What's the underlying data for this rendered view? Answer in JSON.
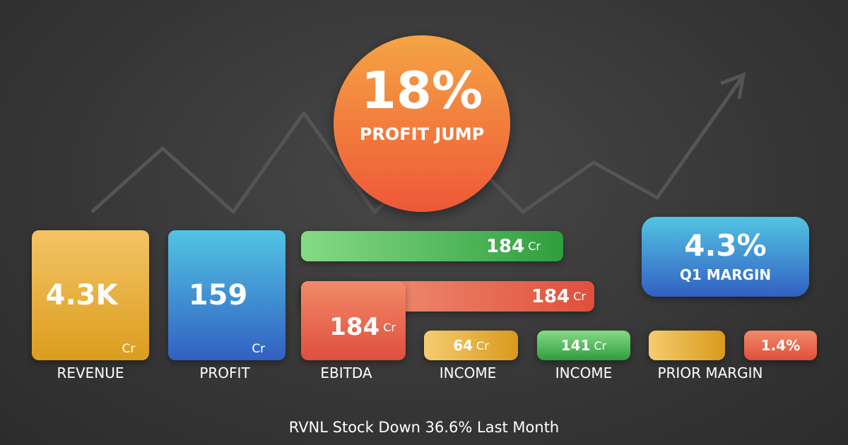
{
  "badge": {
    "value": "18%",
    "label": "PROFIT JUMP"
  },
  "revenue": {
    "value": "4.3K",
    "unit": "Cr",
    "label": "REVENUE"
  },
  "profit": {
    "value": "159",
    "unit": "Cr",
    "label": "PROFIT"
  },
  "ebitda": {
    "bars": [
      {
        "value": "184",
        "unit": "Cr"
      },
      {
        "value": "184",
        "unit": "Cr"
      }
    ],
    "tile": {
      "value": "184",
      "unit": "Cr"
    },
    "label": "EBITDA"
  },
  "income": [
    {
      "value": "64",
      "unit": "Cr",
      "label": "INCOME"
    },
    {
      "value": "141",
      "unit": "Cr",
      "label": "INCOME"
    }
  ],
  "prior_margin": {
    "value": "1.4%",
    "label": "PRIOR MARGIN"
  },
  "q1_margin": {
    "value": "4.3%",
    "label": "Q1 MARGIN"
  },
  "footer": "RVNL Stock Down 36.6% Last Month"
}
